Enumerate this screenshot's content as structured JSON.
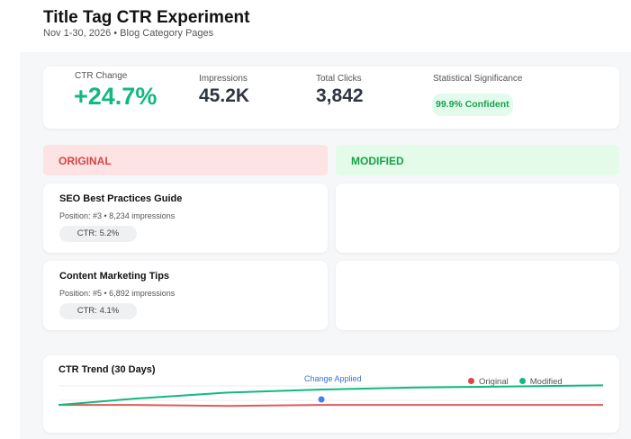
{
  "header": {
    "title": "Title Tag CTR Experiment",
    "subtitle": "Nov 1-30, 2026 • Blog Category Pages"
  },
  "stats": [
    {
      "label": "CTR Change",
      "value": "+24.7%"
    },
    {
      "label": "Impressions",
      "value": "45.2K"
    },
    {
      "label": "Total Clicks",
      "value": "3,842"
    },
    {
      "label": "Statistical Significance",
      "value": "99.9% Confident"
    }
  ],
  "columns": {
    "original": "ORIGINAL",
    "modified": "MODIFIED"
  },
  "pages": [
    {
      "title": "SEO Best Practices Guide",
      "meta": "Position: #3 • 8,234 impressions",
      "ctr": "CTR: 5.2%"
    },
    {
      "title": "Content Marketing Tips",
      "meta": "Position: #5 • 6,892 impressions",
      "ctr": "CTR: 4.1%"
    }
  ],
  "colors": {
    "accent_green": "#10b981",
    "original_red": "#e05a5a",
    "marker_blue": "#3b82f6"
  },
  "chart_data": {
    "type": "line",
    "title": "CTR Trend (30 Days)",
    "annotation": "Change Applied",
    "annotation_day": 15,
    "legend_position": "top-right",
    "x": [
      1,
      5,
      10,
      15,
      20,
      25,
      30
    ],
    "series": [
      {
        "name": "Original",
        "color": "#e05a5a",
        "values": [
          4.6,
          4.6,
          4.5,
          4.6,
          4.6,
          4.6,
          4.6
        ]
      },
      {
        "name": "Modified",
        "color": "#10b981",
        "values": [
          4.6,
          5.2,
          5.8,
          6.1,
          6.3,
          6.4,
          6.5
        ]
      }
    ]
  }
}
